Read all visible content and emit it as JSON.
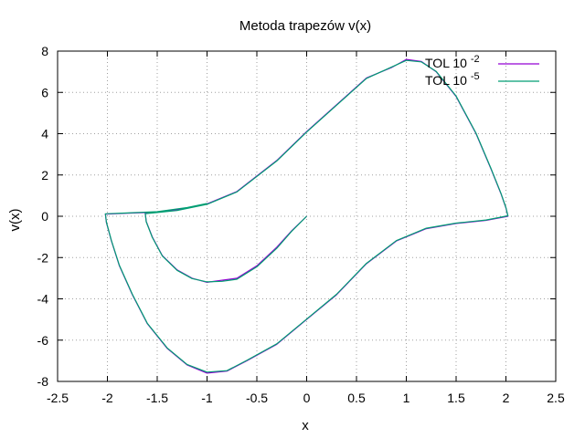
{
  "chart_data": {
    "type": "line",
    "title": "Metoda trapezów v(x)",
    "xlabel": "x",
    "ylabel": "v(x)",
    "xlim": [
      -2.5,
      2.5
    ],
    "ylim": [
      -8,
      8
    ],
    "xticks": [
      -2.5,
      -2,
      -1.5,
      -1,
      -0.5,
      0,
      0.5,
      1,
      1.5,
      2,
      2.5
    ],
    "yticks": [
      -8,
      -6,
      -4,
      -2,
      0,
      2,
      4,
      6,
      8
    ],
    "xtick_labels": [
      "-2.5",
      "-2",
      "-1.5",
      "-1",
      "-0.5",
      "0",
      "0.5",
      "1",
      "1.5",
      "2",
      "2.5"
    ],
    "ytick_labels": [
      "-8",
      "-6",
      "-4",
      "-2",
      "0",
      "2",
      "4",
      "6",
      "8"
    ],
    "grid": true,
    "legend_position": "top-right",
    "series": [
      {
        "name": "TOL 10",
        "exponent": "-2",
        "color": "#9400d3",
        "x": [
          0,
          -0.15,
          -0.3,
          -0.5,
          -0.7,
          -0.85,
          -1.0,
          -1.15,
          -1.3,
          -1.45,
          -1.55,
          -1.61,
          -1.62,
          -1.5,
          -1.3,
          -1.0,
          -0.7,
          -0.3,
          0.0,
          0.3,
          0.6,
          0.85,
          1.0,
          1.15,
          1.3,
          1.5,
          1.7,
          1.85,
          1.95,
          2.0,
          2.02,
          1.8,
          1.5,
          1.2,
          0.9,
          0.6,
          0.3,
          0.0,
          -0.3,
          -0.6,
          -0.8,
          -1.0,
          -1.2,
          -1.4,
          -1.6,
          -1.75,
          -1.88,
          -1.96,
          -2.01,
          -2.02,
          -1.8,
          -1.5,
          -1.2,
          -1.0
        ],
        "y": [
          0,
          -0.7,
          -1.5,
          -2.4,
          -3.0,
          -3.1,
          -3.2,
          -3.0,
          -2.6,
          -1.9,
          -1.0,
          -0.25,
          0.15,
          0.2,
          0.3,
          0.6,
          1.2,
          2.7,
          4.1,
          5.4,
          6.7,
          7.2,
          7.6,
          7.5,
          7.0,
          5.8,
          4.0,
          2.3,
          1.1,
          0.4,
          0.0,
          -0.2,
          -0.35,
          -0.6,
          -1.2,
          -2.3,
          -3.8,
          -5.0,
          -6.2,
          -7.0,
          -7.5,
          -7.6,
          -7.2,
          -6.4,
          -5.2,
          -3.8,
          -2.4,
          -1.2,
          -0.3,
          0.1,
          0.15,
          0.2,
          0.4,
          0.6
        ]
      },
      {
        "name": "TOL 10",
        "exponent": "-5",
        "color": "#009e73",
        "x": [
          0,
          -0.15,
          -0.3,
          -0.5,
          -0.7,
          -0.85,
          -1.0,
          -1.15,
          -1.3,
          -1.45,
          -1.55,
          -1.61,
          -1.62,
          -1.5,
          -1.3,
          -1.0,
          -0.7,
          -0.3,
          0.0,
          0.3,
          0.6,
          0.85,
          1.0,
          1.15,
          1.3,
          1.5,
          1.7,
          1.85,
          1.95,
          2.0,
          2.02,
          1.8,
          1.5,
          1.2,
          0.9,
          0.6,
          0.3,
          0.0,
          -0.3,
          -0.6,
          -0.8,
          -1.0,
          -1.2,
          -1.4,
          -1.6,
          -1.75,
          -1.88,
          -1.96,
          -2.01,
          -2.02,
          -1.8,
          -1.5,
          -1.2,
          -1.0
        ],
        "y": [
          0,
          -0.72,
          -1.55,
          -2.45,
          -3.05,
          -3.15,
          -3.18,
          -3.02,
          -2.62,
          -1.92,
          -1.02,
          -0.27,
          0.13,
          0.18,
          0.28,
          0.58,
          1.18,
          2.68,
          4.08,
          5.38,
          6.68,
          7.22,
          7.55,
          7.48,
          7.02,
          5.82,
          4.02,
          2.32,
          1.12,
          0.42,
          0.02,
          -0.18,
          -0.33,
          -0.58,
          -1.18,
          -2.28,
          -3.78,
          -4.98,
          -6.18,
          -6.98,
          -7.48,
          -7.55,
          -7.18,
          -6.38,
          -5.18,
          -3.78,
          -2.38,
          -1.18,
          -0.28,
          0.12,
          0.16,
          0.22,
          0.42,
          0.62
        ]
      }
    ]
  }
}
